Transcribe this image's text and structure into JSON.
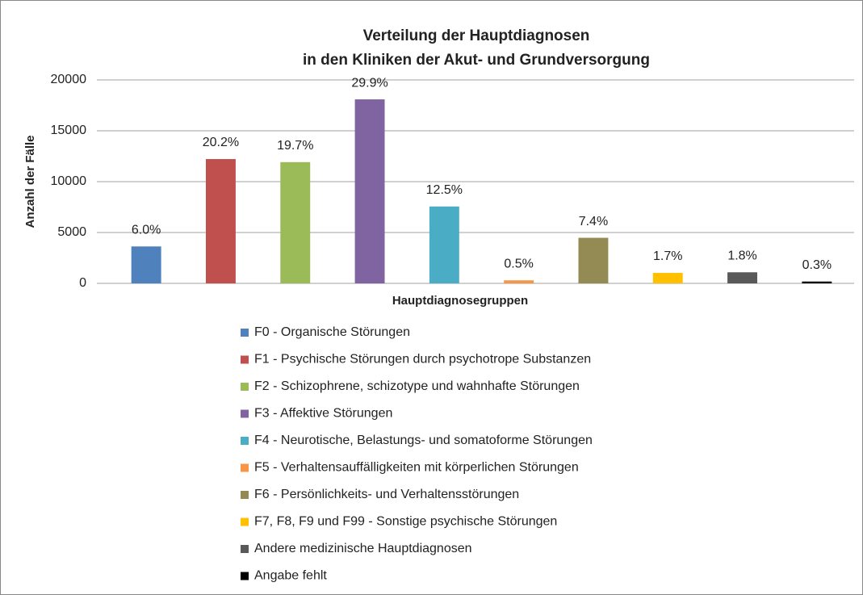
{
  "chart_data": {
    "type": "bar",
    "title": [
      "Verteilung der Hauptdiagnosen",
      "in den Kliniken der Akut- und Grundversorgung"
    ],
    "ylabel": "Anzahl der Fälle",
    "xlabel": "Hauptdiagnosegruppen",
    "ylim": [
      0,
      20000
    ],
    "yticks": [
      0,
      5000,
      10000,
      15000,
      20000
    ],
    "grid": true,
    "legend": "bottom",
    "series": [
      {
        "name": "F0 - Organische Störungen",
        "color": "#4f81bd",
        "values": [
          3630
        ],
        "percent_labels": [
          "6.0%"
        ]
      },
      {
        "name": "F1 - Psychische Störungen durch psychotrope Substanzen",
        "color": "#c0504d",
        "values": [
          12220
        ],
        "percent_labels": [
          "20.2%"
        ]
      },
      {
        "name": "F2 - Schizophrene, schizotype und wahnhafte Störungen",
        "color": "#9bbb59",
        "values": [
          11920
        ],
        "percent_labels": [
          "19.7%"
        ]
      },
      {
        "name": "F3 - Affektive Störungen",
        "color": "#8064a2",
        "values": [
          18090
        ],
        "percent_labels": [
          "29.9%"
        ]
      },
      {
        "name": "F4 - Neurotische, Belastungs- und somatoforme Störungen",
        "color": "#4bacc6",
        "values": [
          7560
        ],
        "percent_labels": [
          "12.5%"
        ]
      },
      {
        "name": "F5 - Verhaltensauffälligkeiten mit körperlichen Störungen",
        "color": "#f79646",
        "values": [
          300
        ],
        "percent_labels": [
          "0.5%"
        ]
      },
      {
        "name": "F6 - Persönlichkeits- und Verhaltensstörungen",
        "color": "#948a54",
        "values": [
          4480
        ],
        "percent_labels": [
          "7.4%"
        ]
      },
      {
        "name": "F7, F8, F9 und F99 - Sonstige psychische Störungen",
        "color": "#ffc000",
        "values": [
          1030
        ],
        "percent_labels": [
          "1.7%"
        ]
      },
      {
        "name": "Andere medizinische Hauptdiagnosen",
        "color": "#595959",
        "values": [
          1090
        ],
        "percent_labels": [
          "1.8%"
        ]
      },
      {
        "name": "Angabe fehlt",
        "color": "#000000",
        "values": [
          180
        ],
        "percent_labels": [
          "0.3%"
        ]
      }
    ]
  }
}
